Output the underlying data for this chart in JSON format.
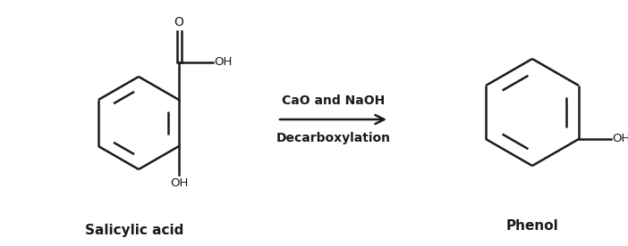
{
  "background_color": "#ffffff",
  "line_color": "#1a1a1a",
  "line_width": 1.8,
  "arrow_text_line1": "CaO and NaOH",
  "arrow_text_line2": "Decarboxylation",
  "label_left": "Salicylic acid",
  "label_right": "Phenol",
  "label_fontsize": 11,
  "arrow_text_fontsize": 10,
  "figsize": [
    7.02,
    2.76
  ],
  "dpi": 100,
  "xlim": [
    0,
    7.02
  ],
  "ylim": [
    0,
    2.76
  ]
}
